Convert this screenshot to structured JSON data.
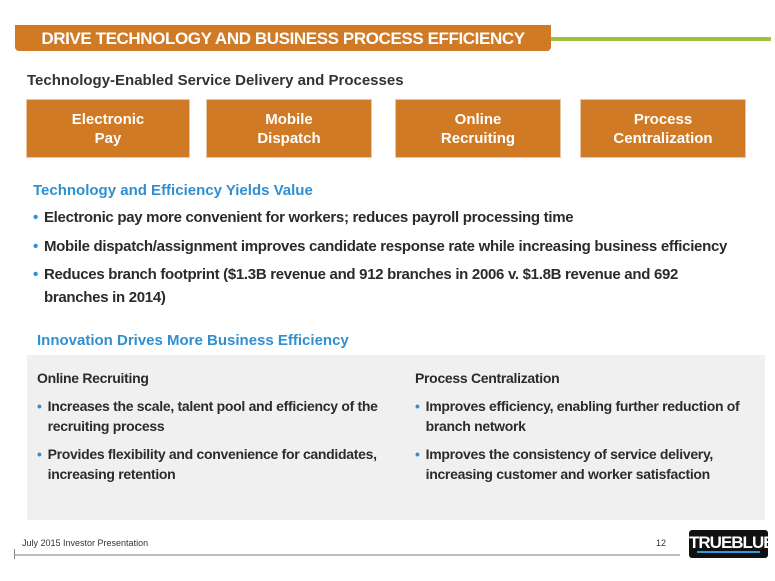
{
  "header": {
    "title": "DRIVE TECHNOLOGY AND BUSINESS PROCESS EFFICIENCY",
    "subtitle": "Technology-Enabled Service Delivery and Processes"
  },
  "boxes": [
    {
      "line1": "Electronic",
      "line2": "Pay"
    },
    {
      "line1": "Mobile",
      "line2": "Dispatch"
    },
    {
      "line1": "Online",
      "line2": "Recruiting"
    },
    {
      "line1": "Process",
      "line2": "Centralization"
    }
  ],
  "value_section": {
    "heading": "Technology and Efficiency Yields Value",
    "bullets": [
      "Electronic pay more convenient for workers; reduces payroll processing time",
      "Mobile dispatch/assignment improves candidate response rate while increasing business efficiency",
      "Reduces branch footprint ($1.3B revenue and 912 branches in 2006 v. $1.8B revenue and 692 branches in 2014)"
    ]
  },
  "innovation": {
    "heading": "Innovation Drives More Business Efficiency",
    "columns": [
      {
        "title": "Online Recruiting",
        "bullets": [
          "Increases the scale, talent pool and efficiency of the recruiting process",
          "Provides flexibility and convenience for candidates, increasing retention"
        ]
      },
      {
        "title": "Process Centralization",
        "bullets": [
          "Improves efficiency, enabling further reduction of branch network",
          "Improves the consistency of service delivery, increasing customer and worker satisfaction"
        ]
      }
    ]
  },
  "footer": {
    "text": "July 2015 Investor Presentation",
    "page": "12",
    "logo": "TRUEBLUE"
  },
  "colors": {
    "orange": "#d07a25",
    "green": "#9cc23c",
    "blue": "#2f8fd0"
  }
}
